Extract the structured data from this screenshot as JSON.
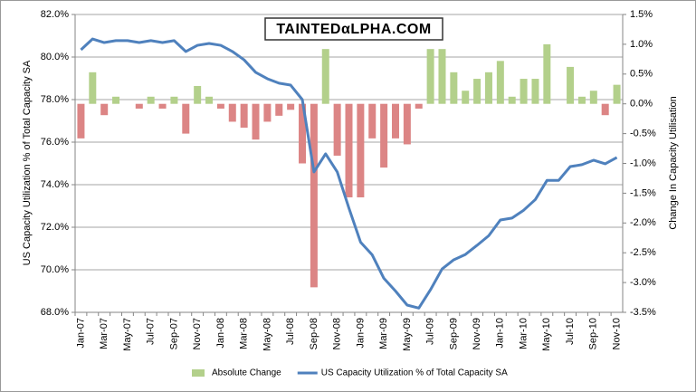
{
  "chart_data": {
    "type": "bar_line",
    "watermark": "TAINTEDαLPHA.COM",
    "ylabel": "US Capacity Utilization % of Total Capacity SA",
    "y2label": "Change In Capacity Utilisation",
    "categories": [
      "Jan-07",
      null,
      "Mar-07",
      null,
      "May-07",
      null,
      "Jul-07",
      null,
      "Sep-07",
      null,
      "Nov-07",
      null,
      "Jan-08",
      null,
      "Mar-08",
      null,
      "May-08",
      null,
      "Jul-08",
      null,
      "Sep-08",
      null,
      "Nov-08",
      null,
      "Jan-09",
      null,
      "Mar-09",
      null,
      "May-09",
      null,
      "Jul-09",
      null,
      "Sep-09",
      null,
      "Nov-09",
      null,
      "Jan-10",
      null,
      "Mar-10",
      null,
      "May-10",
      null,
      "Jul-10",
      null,
      "Sep-10",
      null,
      "Nov-10"
    ],
    "series": [
      {
        "name": "Absolute Change",
        "type": "bar",
        "axis": "y2",
        "color": "#b3d08b",
        "negative_color": "#dc8585",
        "values": [
          -0.58,
          0.53,
          -0.19,
          0.12,
          0,
          -0.08,
          0.12,
          -0.08,
          0.12,
          -0.5,
          0.3,
          0.12,
          -0.08,
          -0.3,
          -0.4,
          -0.6,
          -0.3,
          -0.2,
          -0.1,
          -1.0,
          -3.08,
          0.92,
          -0.87,
          -1.57,
          -1.57,
          -0.58,
          -1.07,
          -0.58,
          -0.68,
          -0.08,
          0.92,
          0.92,
          0.53,
          0.22,
          0.42,
          0.53,
          0.72,
          0.12,
          0.42,
          0.42,
          1.0,
          0,
          0.62,
          0.12,
          0.22,
          -0.19,
          0.32
        ]
      },
      {
        "name": "US Capacity Utilization % of Total Capacity SA",
        "type": "line",
        "axis": "y",
        "color": "#4f81bd",
        "values": [
          80.34,
          80.85,
          80.68,
          80.77,
          80.77,
          80.68,
          80.77,
          80.68,
          80.77,
          80.26,
          80.55,
          80.64,
          80.55,
          80.26,
          79.87,
          79.28,
          78.98,
          78.77,
          78.68,
          78.0,
          74.6,
          75.45,
          74.6,
          72.9,
          71.3,
          70.7,
          69.6,
          69.0,
          68.34,
          68.2,
          69.06,
          70.04,
          70.47,
          70.72,
          71.15,
          71.6,
          72.34,
          72.43,
          72.8,
          73.3,
          74.2,
          74.2,
          74.85,
          74.94,
          75.15,
          74.98,
          75.28
        ]
      }
    ],
    "ylim": [
      68,
      82
    ],
    "yticks": [
      {
        "value": 68,
        "label": "68.0%"
      },
      {
        "value": 70,
        "label": "70.0%"
      },
      {
        "value": 72,
        "label": "72.0%"
      },
      {
        "value": 74,
        "label": "74.0%"
      },
      {
        "value": 76,
        "label": "76.0%"
      },
      {
        "value": 78,
        "label": "78.0%"
      },
      {
        "value": 80,
        "label": "80.0%"
      },
      {
        "value": 82,
        "label": "82.0%"
      }
    ],
    "y2lim": [
      -3.5,
      1.5
    ],
    "y2ticks": [
      {
        "value": -3.5,
        "label": "-3.5%"
      },
      {
        "value": -3,
        "label": "-3.0%"
      },
      {
        "value": -2.5,
        "label": "-2.5%"
      },
      {
        "value": -2,
        "label": "-2.0%"
      },
      {
        "value": -1.5,
        "label": "-1.5%"
      },
      {
        "value": -1,
        "label": "-1.0%"
      },
      {
        "value": -0.5,
        "label": "-0.5%"
      },
      {
        "value": 0,
        "label": "0.0%"
      },
      {
        "value": 0.5,
        "label": "0.5%"
      },
      {
        "value": 1,
        "label": "1.0%"
      },
      {
        "value": 1.5,
        "label": "1.5%"
      }
    ],
    "grid": true,
    "legend": "bottom"
  }
}
